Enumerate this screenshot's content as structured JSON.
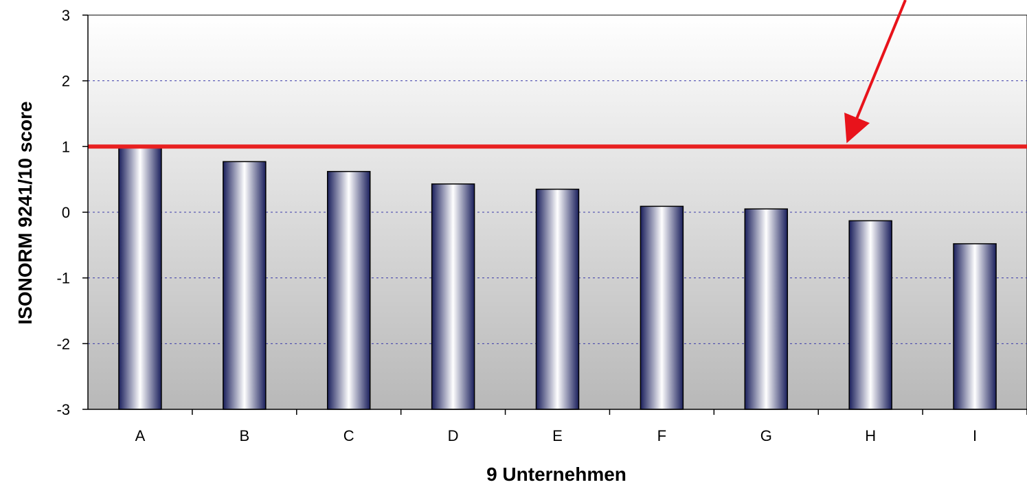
{
  "chart_data": {
    "type": "bar",
    "xlabel": "9 Unternehmen",
    "ylabel": "ISONORM 9241/10 score",
    "categories": [
      "A",
      "B",
      "C",
      "D",
      "E",
      "F",
      "G",
      "H",
      "I"
    ],
    "values": [
      1.0,
      0.77,
      0.62,
      0.43,
      0.35,
      0.09,
      0.05,
      -0.13,
      -0.48
    ],
    "ylim": [
      -3,
      3
    ],
    "yticks": [
      "-3",
      "-2",
      "-1",
      "0",
      "1",
      "2",
      "3"
    ],
    "grid": true,
    "reference_line": {
      "value": 1,
      "color": "#e82020"
    },
    "colors": {
      "bar_dark": "#1a1f5c",
      "bar_light": "#ffffff",
      "grid": "#3a3aa8",
      "annotation_arrow": "#e8131b"
    }
  }
}
